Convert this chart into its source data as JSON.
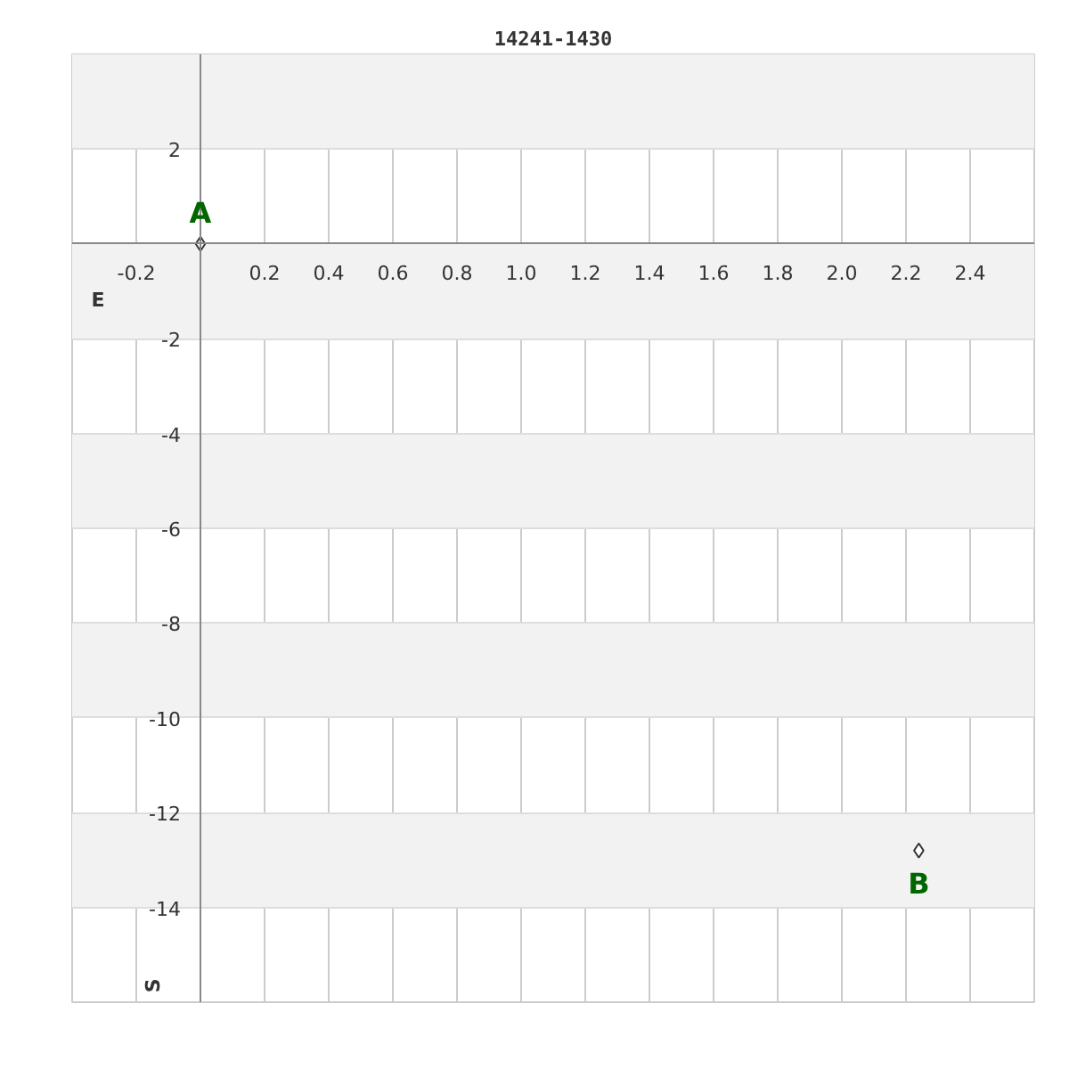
{
  "chart_data": {
    "type": "scatter",
    "title": "14241-1430",
    "xlabel": "E",
    "ylabel": "S",
    "x": [
      0,
      2.24
    ],
    "values": [
      0,
      -12.8
    ],
    "color": "#333333",
    "marker": "diamond",
    "annotations": [
      {
        "text": "A",
        "x": 0,
        "y": 0
      },
      {
        "text": "B",
        "x": 2.24,
        "y": -12.8
      }
    ],
    "xlim": [
      -0.4,
      2.6
    ],
    "ylim": [
      -16,
      4
    ],
    "xticks": [
      -0.2,
      {
        "value": 0,
        "label": null
      },
      0.2,
      0.4,
      0.6,
      0.8,
      {
        "value": 1.0,
        "label": "1.0"
      },
      1.2,
      1.4,
      1.6,
      1.8,
      {
        "value": 2.0,
        "label": "2.0"
      },
      2.2,
      2.4
    ],
    "yticks": [
      2,
      {
        "value": 0,
        "label": null
      },
      -2,
      -4,
      -6,
      -8,
      -10,
      -12,
      -14
    ],
    "grid": true
  }
}
